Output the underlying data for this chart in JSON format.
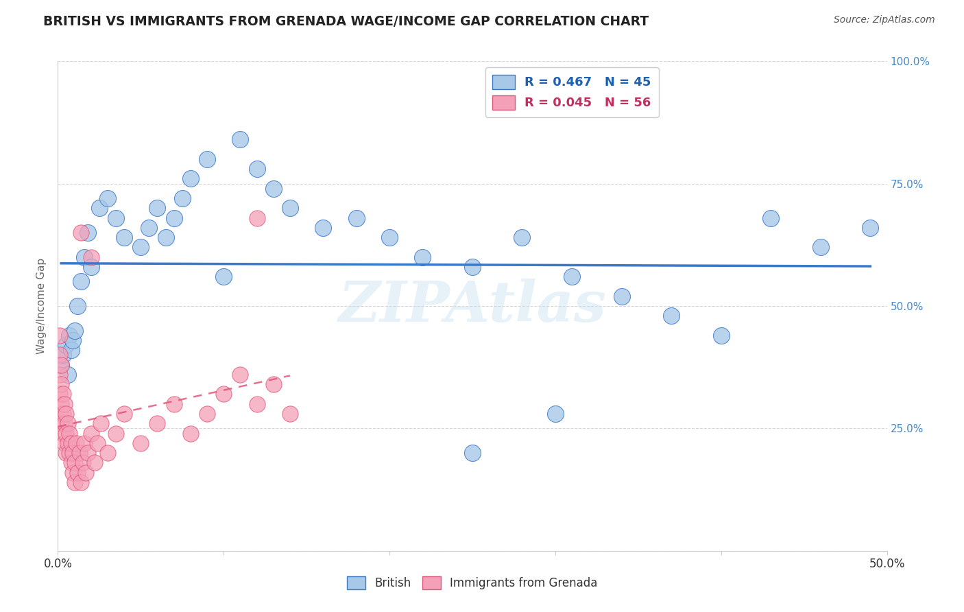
{
  "title": "BRITISH VS IMMIGRANTS FROM GRENADA WAGE/INCOME GAP CORRELATION CHART",
  "source": "Source: ZipAtlas.com",
  "ylabel": "Wage/Income Gap",
  "legend_label1": "British",
  "legend_label2": "Immigrants from Grenada",
  "r1": 0.467,
  "n1": 45,
  "r2": 0.045,
  "n2": 56,
  "color_blue": "#A8C8E8",
  "color_pink": "#F4A0B8",
  "color_trend_blue": "#3A78C9",
  "color_trend_pink": "#E05878",
  "color_title": "#222222",
  "color_source": "#555555",
  "color_r_blue": "#2060B0",
  "color_r_pink": "#C03060",
  "ytick_color": "#4488CC",
  "watermark": "ZIPAtlas",
  "xlim": [
    0.0,
    0.5
  ],
  "ylim": [
    0.0,
    1.0
  ],
  "blue_x": [
    0.002,
    0.003,
    0.005,
    0.006,
    0.007,
    0.008,
    0.009,
    0.01,
    0.012,
    0.014,
    0.016,
    0.018,
    0.02,
    0.025,
    0.03,
    0.035,
    0.04,
    0.05,
    0.055,
    0.06,
    0.065,
    0.07,
    0.075,
    0.08,
    0.09,
    0.1,
    0.11,
    0.12,
    0.13,
    0.14,
    0.16,
    0.18,
    0.2,
    0.22,
    0.25,
    0.28,
    0.31,
    0.34,
    0.37,
    0.4,
    0.43,
    0.46,
    0.49,
    0.3,
    0.25
  ],
  "blue_y": [
    0.38,
    0.4,
    0.42,
    0.36,
    0.44,
    0.41,
    0.43,
    0.45,
    0.5,
    0.55,
    0.6,
    0.65,
    0.58,
    0.7,
    0.72,
    0.68,
    0.64,
    0.62,
    0.66,
    0.7,
    0.64,
    0.68,
    0.72,
    0.76,
    0.8,
    0.56,
    0.84,
    0.78,
    0.74,
    0.7,
    0.66,
    0.68,
    0.64,
    0.6,
    0.58,
    0.64,
    0.56,
    0.52,
    0.48,
    0.44,
    0.68,
    0.62,
    0.66,
    0.28,
    0.2
  ],
  "pink_x": [
    0.001,
    0.001,
    0.001,
    0.001,
    0.001,
    0.002,
    0.002,
    0.002,
    0.002,
    0.003,
    0.003,
    0.003,
    0.004,
    0.004,
    0.004,
    0.005,
    0.005,
    0.005,
    0.006,
    0.006,
    0.007,
    0.007,
    0.008,
    0.008,
    0.009,
    0.009,
    0.01,
    0.01,
    0.011,
    0.012,
    0.013,
    0.014,
    0.015,
    0.016,
    0.017,
    0.018,
    0.02,
    0.022,
    0.024,
    0.026,
    0.03,
    0.035,
    0.04,
    0.05,
    0.06,
    0.07,
    0.08,
    0.09,
    0.1,
    0.11,
    0.12,
    0.13,
    0.14,
    0.02,
    0.014,
    0.12
  ],
  "pink_y": [
    0.28,
    0.32,
    0.36,
    0.4,
    0.44,
    0.26,
    0.3,
    0.34,
    0.38,
    0.24,
    0.28,
    0.32,
    0.22,
    0.26,
    0.3,
    0.2,
    0.24,
    0.28,
    0.22,
    0.26,
    0.2,
    0.24,
    0.18,
    0.22,
    0.16,
    0.2,
    0.14,
    0.18,
    0.22,
    0.16,
    0.2,
    0.14,
    0.18,
    0.22,
    0.16,
    0.2,
    0.24,
    0.18,
    0.22,
    0.26,
    0.2,
    0.24,
    0.28,
    0.22,
    0.26,
    0.3,
    0.24,
    0.28,
    0.32,
    0.36,
    0.3,
    0.34,
    0.28,
    0.6,
    0.65,
    0.68
  ]
}
